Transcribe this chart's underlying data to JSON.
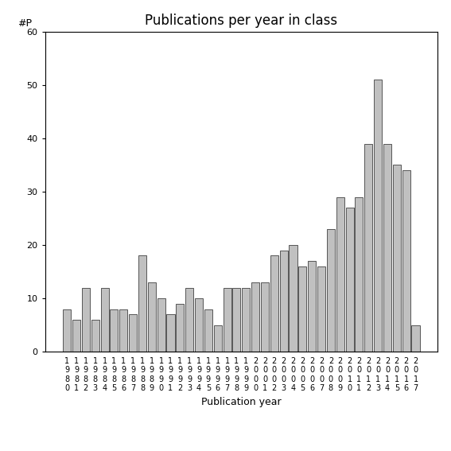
{
  "title": "Publications per year in class",
  "xlabel": "Publication year",
  "ylabel": "#P",
  "years": [
    1980,
    1981,
    1982,
    1983,
    1984,
    1985,
    1986,
    1987,
    1988,
    1989,
    1990,
    1991,
    1992,
    1993,
    1994,
    1995,
    1996,
    1997,
    1998,
    1999,
    2000,
    2001,
    2002,
    2003,
    2004,
    2005,
    2006,
    2007,
    2008,
    2009,
    2010,
    2011,
    2012,
    2013,
    2014,
    2015,
    2016,
    2017
  ],
  "values": [
    8,
    6,
    12,
    6,
    12,
    8,
    8,
    7,
    18,
    13,
    10,
    7,
    9,
    12,
    10,
    8,
    5,
    12,
    12,
    12,
    13,
    13,
    18,
    19,
    20,
    16,
    17,
    16,
    23,
    29,
    27,
    29,
    39,
    51,
    39,
    35,
    34,
    5
  ],
  "bar_color": "#c0c0c0",
  "bar_edge_color": "#404040",
  "ylim": [
    0,
    60
  ],
  "yticks": [
    0,
    10,
    20,
    30,
    40,
    50,
    60
  ],
  "bg_color": "#ffffff",
  "title_fontsize": 12,
  "label_fontsize": 9,
  "tick_fontsize": 8
}
